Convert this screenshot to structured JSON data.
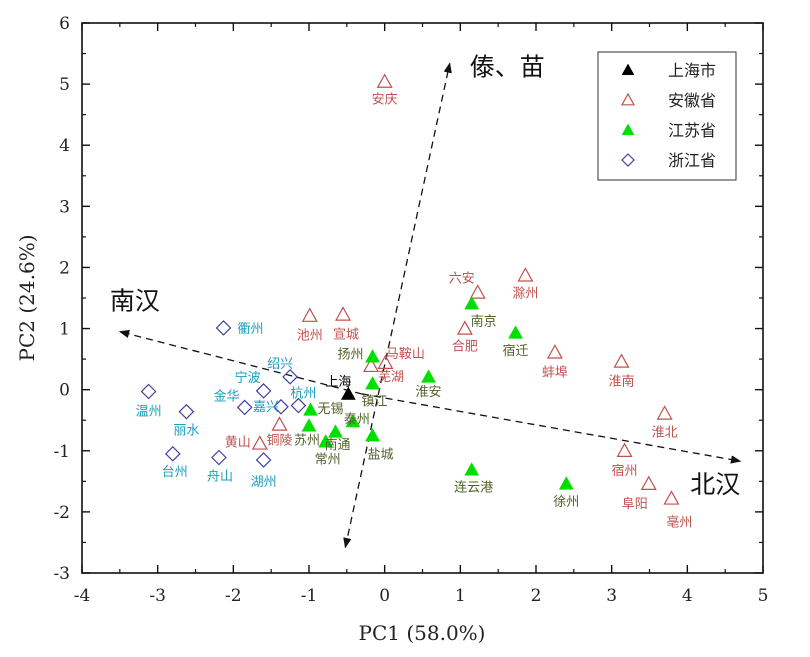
{
  "chart_data": {
    "type": "scatter",
    "title": "",
    "xlabel": "PC1 (58.0%)",
    "ylabel": "PC2 (24.6%)",
    "xlim": [
      -4,
      5
    ],
    "ylim": [
      -3,
      6
    ],
    "xticks": [
      -4,
      -3,
      -2,
      -1,
      0,
      1,
      2,
      3,
      4,
      5
    ],
    "yticks": [
      -3,
      -2,
      -1,
      0,
      1,
      2,
      3,
      4,
      5,
      6
    ],
    "grid": false,
    "legend_position": "top-right",
    "series": [
      {
        "name": "上海市",
        "marker": "filled-triangle",
        "marker_color": "#000000",
        "label_color": "#000000",
        "points": [
          {
            "label": "上海",
            "x": -0.48,
            "y": -0.07
          }
        ]
      },
      {
        "name": "安徽省",
        "marker": "open-triangle",
        "marker_color": "#c0504d",
        "label_color": "#c0504d",
        "points": [
          {
            "label": "安庆",
            "x": 0.0,
            "y": 5.04
          },
          {
            "label": "池州",
            "x": -0.99,
            "y": 1.21
          },
          {
            "label": "宣城",
            "x": -0.55,
            "y": 1.23
          },
          {
            "label": "马鞍山",
            "x": 0.01,
            "y": 0.44
          },
          {
            "label": "芜湖",
            "x": -0.18,
            "y": 0.39
          },
          {
            "label": "铜陵",
            "x": -1.39,
            "y": -0.57
          },
          {
            "label": "黄山",
            "x": -1.65,
            "y": -0.88
          },
          {
            "label": "六安",
            "x": 1.23,
            "y": 1.59
          },
          {
            "label": "滁州",
            "x": 1.86,
            "y": 1.87
          },
          {
            "label": "合肥",
            "x": 1.06,
            "y": 1.0
          },
          {
            "label": "蚌埠",
            "x": 2.25,
            "y": 0.61
          },
          {
            "label": "淮南",
            "x": 3.13,
            "y": 0.46
          },
          {
            "label": "淮北",
            "x": 3.7,
            "y": -0.39
          },
          {
            "label": "宿州",
            "x": 3.17,
            "y": -1.0
          },
          {
            "label": "阜阳",
            "x": 3.49,
            "y": -1.54
          },
          {
            "label": "亳州",
            "x": 3.79,
            "y": -1.78
          }
        ]
      },
      {
        "name": "江苏省",
        "marker": "filled-triangle",
        "marker_color": "#00e000",
        "label_color": "#4f6228",
        "points": [
          {
            "label": "扬州",
            "x": -0.16,
            "y": 0.54
          },
          {
            "label": "镇江",
            "x": -0.16,
            "y": 0.1
          },
          {
            "label": "无锡",
            "x": -0.98,
            "y": -0.33
          },
          {
            "label": "苏州",
            "x": -1.0,
            "y": -0.59
          },
          {
            "label": "常州",
            "x": -0.78,
            "y": -0.85
          },
          {
            "label": "南通",
            "x": -0.65,
            "y": -0.69
          },
          {
            "label": "泰州",
            "x": -0.42,
            "y": -0.52
          },
          {
            "label": "盐城",
            "x": -0.16,
            "y": -0.75
          },
          {
            "label": "淮安",
            "x": 0.58,
            "y": 0.21
          },
          {
            "label": "南京",
            "x": 1.15,
            "y": 1.41
          },
          {
            "label": "宿迁",
            "x": 1.73,
            "y": 0.93
          },
          {
            "label": "连云港",
            "x": 1.15,
            "y": -1.31
          },
          {
            "label": "徐州",
            "x": 2.4,
            "y": -1.54
          }
        ]
      },
      {
        "name": "浙江省",
        "marker": "open-diamond",
        "marker_color": "#4040a0",
        "label_color": "#1a9fbf",
        "points": [
          {
            "label": "衢州",
            "x": -2.13,
            "y": 1.01
          },
          {
            "label": "绍兴",
            "x": -1.25,
            "y": 0.21
          },
          {
            "label": "宁波",
            "x": -1.6,
            "y": -0.02
          },
          {
            "label": "杭州",
            "x": -1.14,
            "y": -0.26
          },
          {
            "label": "金华",
            "x": -1.85,
            "y": -0.29
          },
          {
            "label": "嘉兴",
            "x": -1.37,
            "y": -0.28
          },
          {
            "label": "温州",
            "x": -3.12,
            "y": -0.03
          },
          {
            "label": "丽水",
            "x": -2.62,
            "y": -0.36
          },
          {
            "label": "台州",
            "x": -2.8,
            "y": -1.05
          },
          {
            "label": "舟山",
            "x": -2.19,
            "y": -1.11
          },
          {
            "label": "湖州",
            "x": -1.6,
            "y": -1.15
          }
        ]
      }
    ],
    "annotations": [
      {
        "text": "南汉",
        "arrow_from": [
          -0.3,
          -0.07
        ],
        "arrow_to": [
          -3.5,
          0.95
        ]
      },
      {
        "text": "北汉",
        "arrow_from": [
          -0.3,
          -0.07
        ],
        "arrow_to": [
          4.7,
          -1.17
        ]
      },
      {
        "text": "傣、苗",
        "arrow_from": [
          -0.52,
          -2.58
        ],
        "arrow_to": [
          0.86,
          5.34
        ]
      }
    ]
  }
}
